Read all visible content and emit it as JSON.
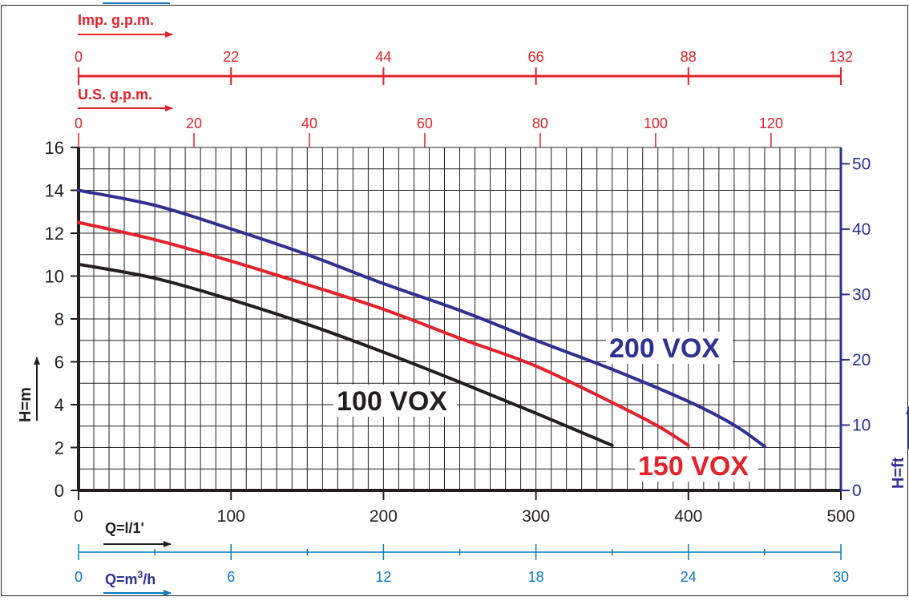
{
  "chart_data": {
    "type": "line",
    "x_axis_primary": {
      "label": "Q=l/1'",
      "ticks": [
        "0",
        "100",
        "200",
        "300",
        "400",
        "500"
      ],
      "range": [
        0,
        500
      ]
    },
    "x_axis_m3h": {
      "label_main": "Q=m",
      "label_sup": "3",
      "label_tail": "/h",
      "ticks": [
        "0",
        "6",
        "12",
        "18",
        "24",
        "30"
      ],
      "range": [
        0,
        30
      ]
    },
    "x_axis_us_gpm": {
      "label": "U.S. g.p.m.",
      "ticks": [
        "0",
        "20",
        "40",
        "60",
        "80",
        "100",
        "120"
      ]
    },
    "x_axis_imp_gpm": {
      "label": "Imp. g.p.m.",
      "ticks": [
        "0",
        "22",
        "44",
        "66",
        "88",
        "132"
      ]
    },
    "y_axis_left": {
      "label": "H=m",
      "ticks": [
        "0",
        "2",
        "4",
        "6",
        "8",
        "10",
        "12",
        "14",
        "16"
      ],
      "range": [
        0,
        16
      ]
    },
    "y_axis_right": {
      "label": "H=ft",
      "ticks": [
        "0",
        "10",
        "20",
        "30",
        "40",
        "50"
      ],
      "range": [
        0,
        52.5
      ]
    },
    "grid": true,
    "series": [
      {
        "name": "100 VOX",
        "color": "#231f20",
        "x": [
          0,
          50,
          100,
          150,
          200,
          250,
          300,
          350
        ],
        "y": [
          10.55,
          9.9,
          8.9,
          7.75,
          6.45,
          5.05,
          3.6,
          2.1
        ]
      },
      {
        "name": "150 VOX",
        "color": "#e3222b",
        "x": [
          0,
          50,
          100,
          150,
          200,
          250,
          300,
          350,
          380,
          400
        ],
        "y": [
          12.5,
          11.7,
          10.7,
          9.6,
          8.45,
          7.1,
          5.8,
          4.1,
          3.0,
          2.1
        ]
      },
      {
        "name": "200 VOX",
        "color": "#2e3192",
        "x": [
          0,
          50,
          100,
          150,
          200,
          250,
          300,
          350,
          400,
          430,
          450
        ],
        "y": [
          14.0,
          13.3,
          12.2,
          11.0,
          9.65,
          8.4,
          7.0,
          5.65,
          4.15,
          3.05,
          2.05
        ]
      }
    ]
  },
  "colors": {
    "imp_axis": "#e3222b",
    "us_axis": "#e3222b",
    "m3h_axis": "#0a7ac0",
    "ft_axis": "#2e3192",
    "grid": "#231f20"
  }
}
